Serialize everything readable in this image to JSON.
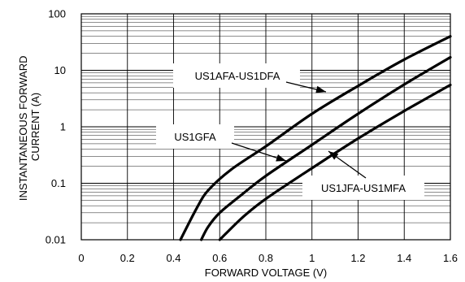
{
  "chart_data": {
    "type": "line",
    "xlabel": "FORWARD VOLTAGE (V)",
    "ylabel_lines": [
      "INSTANTANEOUS FORWARD",
      "CURRENT (A)"
    ],
    "xlim": [
      0,
      1.6
    ],
    "ylim": [
      0.01,
      100
    ],
    "yscale": "log",
    "grid": true,
    "x_ticks": [
      "0",
      "0.2",
      "0.4",
      "0.6",
      "0.8",
      "1",
      "1.2",
      "1.4",
      "1.6"
    ],
    "y_ticks": [
      "0.01",
      "0.1",
      "1",
      "10",
      "100"
    ],
    "series": [
      {
        "name": "US1AFA-US1DFA",
        "x": [
          0.43,
          0.5,
          0.55,
          0.65,
          0.8,
          1.0,
          1.2,
          1.4,
          1.6
        ],
        "y": [
          0.01,
          0.036,
          0.075,
          0.175,
          0.45,
          1.7,
          5.3,
          15.5,
          40
        ]
      },
      {
        "name": "US1GFA",
        "x": [
          0.52,
          0.55,
          0.6,
          0.7,
          0.8,
          1.0,
          1.2,
          1.4,
          1.6
        ],
        "y": [
          0.01,
          0.017,
          0.03,
          0.065,
          0.135,
          0.48,
          1.7,
          5.6,
          17
        ]
      },
      {
        "name": "US1JFA-US1MFA",
        "x": [
          0.6,
          0.7,
          0.8,
          1.0,
          1.2,
          1.4,
          1.6
        ],
        "y": [
          0.01,
          0.025,
          0.053,
          0.185,
          0.62,
          1.9,
          5.5
        ]
      }
    ],
    "annotations": [
      {
        "text": "US1AFA-US1DFA",
        "points_to": "US1AFA-US1DFA"
      },
      {
        "text": "US1GFA",
        "points_to": "US1GFA"
      },
      {
        "text": "US1JFA-US1MFA",
        "points_to": "US1JFA-US1MFA"
      }
    ]
  }
}
